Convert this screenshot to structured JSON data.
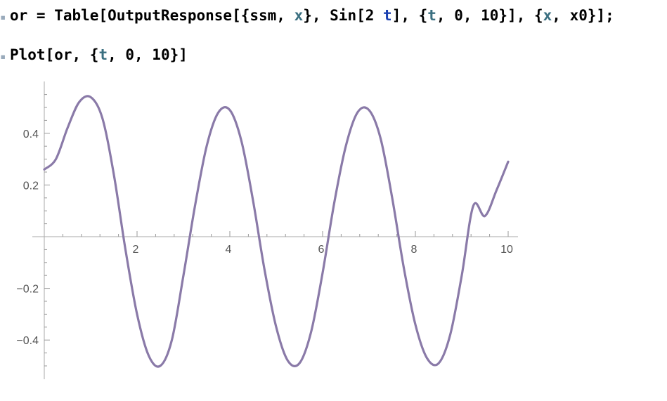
{
  "notebook": {
    "line1": {
      "t1": "or = Table[OutputResponse[{ssm, ",
      "v1": "x",
      "t2": "}, Sin[2 ",
      "v2": "t",
      "t3": "], {",
      "v3": "t",
      "t4": ", 0, 10}], {",
      "v4": "x",
      "t5": ", x0}];"
    },
    "line2": {
      "t1": "Plot[or, {",
      "v1": "t",
      "t2": ", 0, 10}]"
    }
  },
  "chart_data": {
    "type": "line",
    "title": "",
    "xlabel": "",
    "ylabel": "",
    "xlim": [
      0,
      10
    ],
    "ylim": [
      -0.5,
      0.55
    ],
    "x_ticks": [
      2,
      4,
      6,
      8,
      10
    ],
    "x_tick_labels": [
      "2",
      "4",
      "6",
      "8",
      "10"
    ],
    "y_ticks": [
      -0.4,
      -0.2,
      0.2,
      0.4
    ],
    "y_tick_labels": [
      "−0.4",
      "−0.2",
      "0.2",
      "0.4"
    ],
    "grid": false,
    "series": [
      {
        "color": "#8a7aa8",
        "x": [
          0,
          0.25,
          0.5,
          0.75,
          1.0,
          1.25,
          1.5,
          1.75,
          2.0,
          2.25,
          2.5,
          2.75,
          3.0,
          3.25,
          3.5,
          3.75,
          4.0,
          4.25,
          4.5,
          4.75,
          5.0,
          5.25,
          5.5,
          5.75,
          6.0,
          6.25,
          6.5,
          6.75,
          7.0,
          7.25,
          7.5,
          7.75,
          8.0,
          8.25,
          8.5,
          8.75,
          9.0,
          9.25,
          9.5,
          9.75,
          10.0
        ],
        "values": [
          0.26,
          0.3,
          0.42,
          0.52,
          0.54,
          0.46,
          0.24,
          -0.05,
          -0.3,
          -0.46,
          -0.5,
          -0.4,
          -0.15,
          0.12,
          0.35,
          0.48,
          0.49,
          0.37,
          0.14,
          -0.13,
          -0.35,
          -0.48,
          -0.49,
          -0.37,
          -0.14,
          0.13,
          0.35,
          0.48,
          0.49,
          0.38,
          0.15,
          -0.12,
          -0.34,
          -0.47,
          -0.49,
          -0.38,
          -0.15,
          0.12,
          0.08,
          0.18,
          0.29
        ]
      }
    ]
  }
}
